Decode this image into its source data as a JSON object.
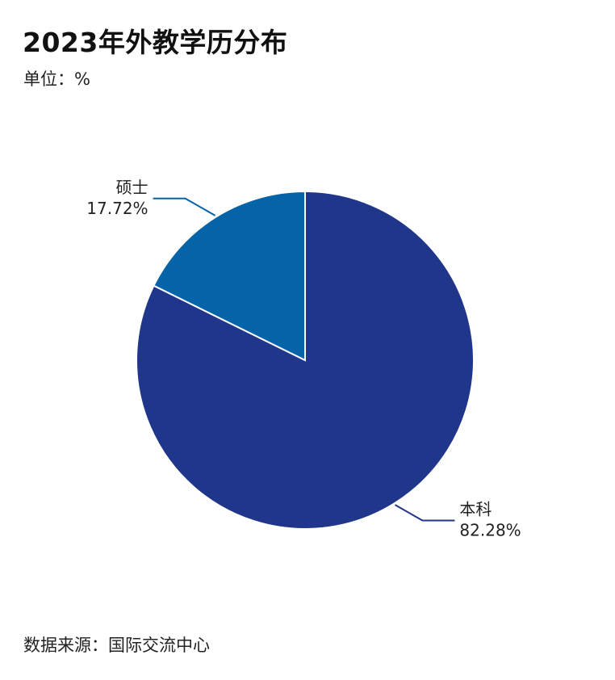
{
  "header": {
    "title": "2023年外教学历分布",
    "unit": "单位：%"
  },
  "footer": {
    "source": "数据来源：国际交流中心"
  },
  "chart_data": {
    "type": "pie",
    "title": "2023年外教学历分布",
    "unit": "%",
    "slices": [
      {
        "name": "本科",
        "value": 82.28,
        "label": "82.28%",
        "color": "#20368a"
      },
      {
        "name": "硕士",
        "value": 17.72,
        "label": "17.72%",
        "color": "#0563a8"
      }
    ],
    "start_angle": "12 o'clock",
    "direction": "clockwise",
    "legend": "none"
  }
}
